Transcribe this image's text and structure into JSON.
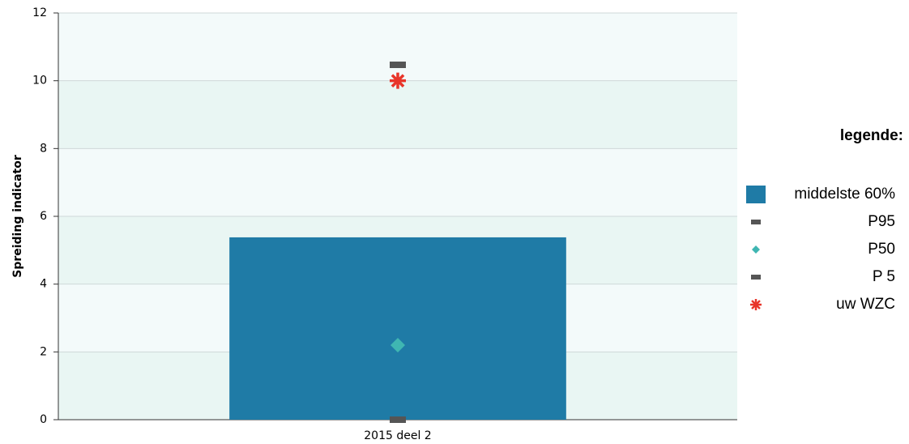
{
  "chart_data": {
    "type": "bar",
    "y_label": "Spreiding indicator",
    "legend_title": "legende:",
    "legend": "right",
    "categories": [
      "2015 deel 2"
    ],
    "series": [
      {
        "name": "middelste 60%",
        "color": "#1f7ba6",
        "values": [
          5.38
        ],
        "marker": "bar"
      },
      {
        "name": "P95",
        "color": "#555555",
        "values": [
          10.47
        ],
        "marker": "dash"
      },
      {
        "name": "P50",
        "color": "#3fb6b2",
        "values": [
          2.2
        ],
        "marker": "diamond"
      },
      {
        "name": "P 5",
        "color": "#555555",
        "values": [
          0
        ],
        "marker": "dash"
      },
      {
        "name": "uw WZC",
        "color": "#e8352a",
        "values": [
          10
        ],
        "marker": "star"
      }
    ],
    "ylim": [
      0,
      12
    ],
    "yticks": [
      0,
      2,
      4,
      6,
      8,
      10,
      12
    ],
    "grid": true
  }
}
